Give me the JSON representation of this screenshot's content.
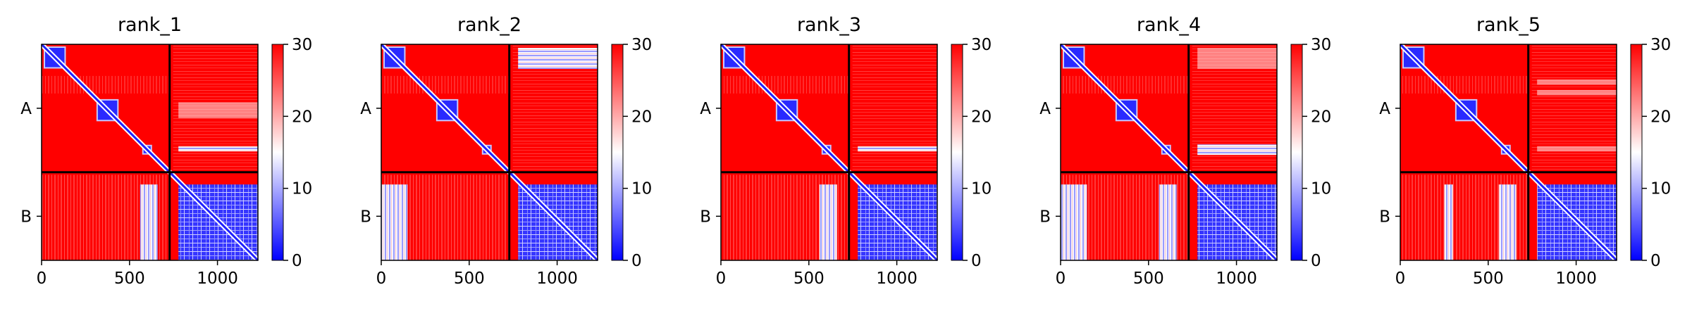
{
  "chart_data": [
    {
      "type": "heatmap",
      "title": "rank_1",
      "x_ticks": [
        "0",
        "500",
        "1000"
      ],
      "y_tick_labels": [
        "A",
        "B"
      ],
      "colorbar_ticks": [
        "0",
        "10",
        "20",
        "30"
      ],
      "clim": [
        0,
        30
      ],
      "colormap": "bwr",
      "chain_boundary": 728,
      "length": 1230,
      "intra_domains": [
        [
          0,
          150
        ],
        [
          300,
          450
        ],
        [
          550,
          650
        ]
      ],
      "b_mix_columns": [
        [
          560,
          660
        ]
      ],
      "a_rows_to_b_band": [
        [
          580,
          610
        ]
      ],
      "a_rows_to_b_faint": [
        [
          330,
          420
        ]
      ]
    },
    {
      "type": "heatmap",
      "title": "rank_2",
      "x_ticks": [
        "0",
        "500",
        "1000"
      ],
      "y_tick_labels": [
        "A",
        "B"
      ],
      "colorbar_ticks": [
        "0",
        "10",
        "20",
        "30"
      ],
      "clim": [
        0,
        30
      ],
      "colormap": "bwr",
      "chain_boundary": 728,
      "length": 1230,
      "intra_domains": [
        [
          0,
          150
        ],
        [
          300,
          450
        ],
        [
          550,
          650
        ]
      ],
      "b_mix_columns": [
        [
          0,
          150
        ]
      ],
      "a_rows_to_b_band": [
        [
          20,
          140
        ]
      ],
      "a_rows_to_b_faint": []
    },
    {
      "type": "heatmap",
      "title": "rank_3",
      "x_ticks": [
        "0",
        "500",
        "1000"
      ],
      "y_tick_labels": [
        "A",
        "B"
      ],
      "colorbar_ticks": [
        "0",
        "10",
        "20",
        "30"
      ],
      "clim": [
        0,
        30
      ],
      "colormap": "bwr",
      "chain_boundary": 728,
      "length": 1230,
      "intra_domains": [
        [
          0,
          150
        ],
        [
          300,
          450
        ],
        [
          550,
          650
        ]
      ],
      "b_mix_columns": [
        [
          560,
          660
        ]
      ],
      "a_rows_to_b_band": [
        [
          580,
          610
        ]
      ],
      "a_rows_to_b_faint": []
    },
    {
      "type": "heatmap",
      "title": "rank_4",
      "x_ticks": [
        "0",
        "500",
        "1000"
      ],
      "y_tick_labels": [
        "A",
        "B"
      ],
      "colorbar_ticks": [
        "0",
        "10",
        "20",
        "30"
      ],
      "clim": [
        0,
        30
      ],
      "colormap": "bwr",
      "chain_boundary": 728,
      "length": 1230,
      "intra_domains": [
        [
          0,
          150
        ],
        [
          300,
          450
        ],
        [
          550,
          650
        ]
      ],
      "b_mix_columns": [
        [
          0,
          150
        ],
        [
          560,
          660
        ]
      ],
      "a_rows_to_b_band": [
        [
          570,
          630
        ]
      ],
      "a_rows_to_b_faint": [
        [
          20,
          140
        ]
      ]
    },
    {
      "type": "heatmap",
      "title": "rank_5",
      "x_ticks": [
        "0",
        "500",
        "1000"
      ],
      "y_tick_labels": [
        "A",
        "B"
      ],
      "colorbar_ticks": [
        "0",
        "10",
        "20",
        "30"
      ],
      "clim": [
        0,
        30
      ],
      "colormap": "bwr",
      "chain_boundary": 728,
      "length": 1230,
      "intra_domains": [
        [
          0,
          150
        ],
        [
          300,
          450
        ],
        [
          550,
          650
        ]
      ],
      "b_mix_columns": [
        [
          250,
          300
        ],
        [
          560,
          660
        ]
      ],
      "a_rows_to_b_band": [],
      "a_rows_to_b_faint": [
        [
          200,
          230
        ],
        [
          260,
          290
        ],
        [
          580,
          610
        ]
      ]
    }
  ],
  "colors": {
    "high": "#ff0000",
    "mid": "#ffffff",
    "low": "#0000ff",
    "frame": "#000000"
  }
}
